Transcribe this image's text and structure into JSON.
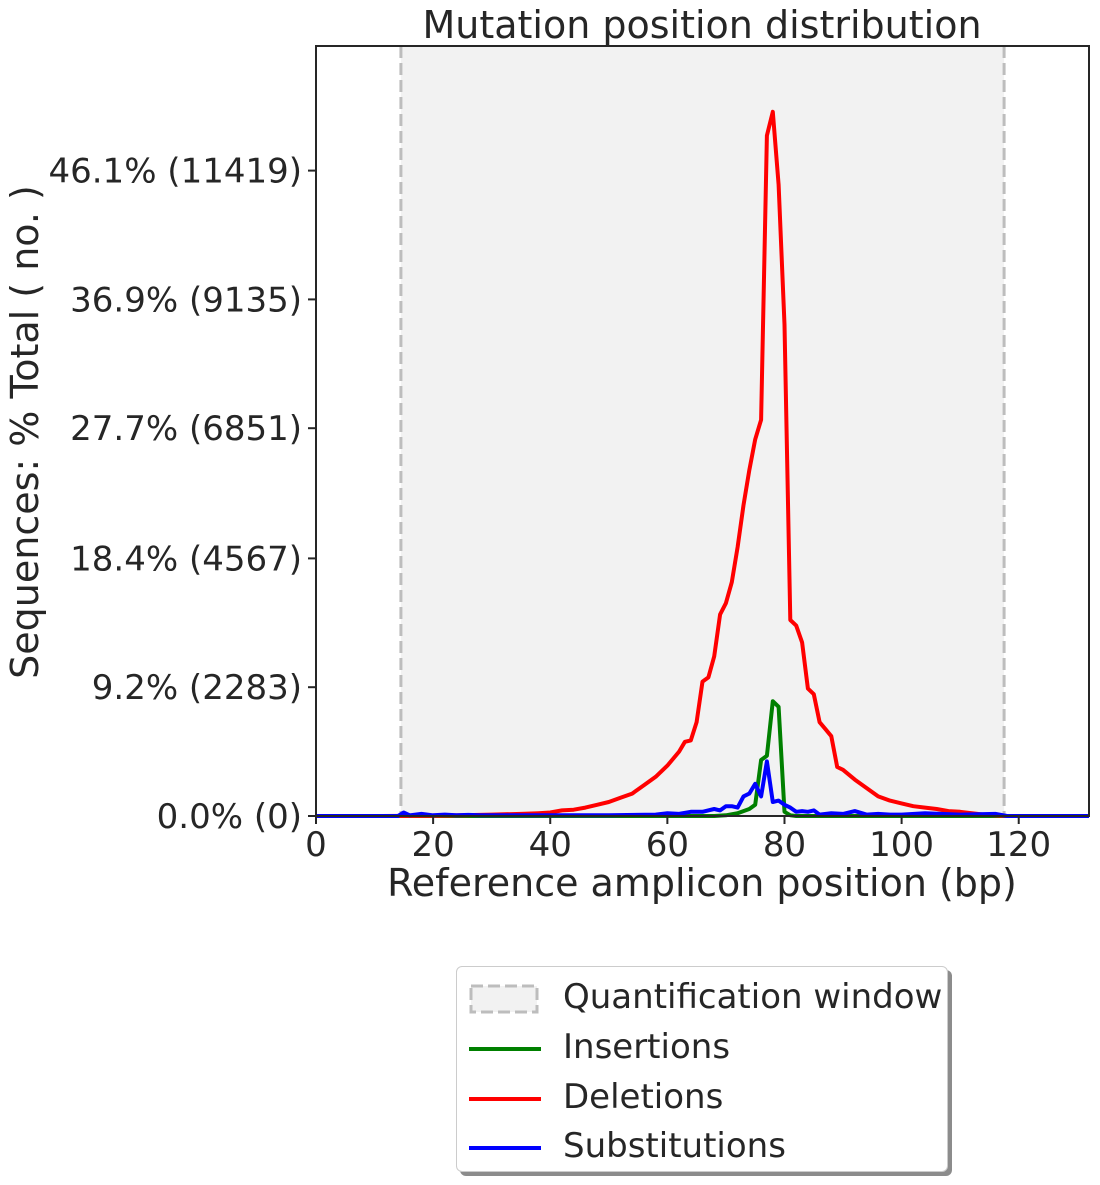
{
  "chart_data": {
    "type": "line",
    "title": "Mutation position distribution",
    "xlabel": "Reference amplicon position (bp)",
    "ylabel": "Sequences: % Total ( no. )",
    "xlim": [
      0,
      132
    ],
    "ylim": [
      0,
      55.0
    ],
    "xticks": [
      0,
      20,
      40,
      60,
      80,
      100,
      120
    ],
    "xtick_labels": [
      "0",
      "20",
      "40",
      "60",
      "80",
      "100",
      "120"
    ],
    "yticks": [
      0,
      9.2,
      18.4,
      27.7,
      36.9,
      46.1
    ],
    "ytick_labels": [
      "0.0% (0)",
      "9.2% (2283)",
      "18.4% (4567)",
      "27.7% (6851)",
      "36.9% (9135)",
      "46.1% (11419)"
    ],
    "quantification_window": [
      14.5,
      117.5
    ],
    "grid": false,
    "legend_position": "below plot",
    "series": [
      {
        "name": "Insertions",
        "color": "#008000",
        "x": [
          0,
          68,
          70,
          72,
          74,
          75,
          76,
          77,
          78,
          79,
          80,
          81,
          82,
          132
        ],
        "y": [
          0,
          0,
          0.05,
          0.2,
          0.5,
          0.8,
          4.0,
          4.3,
          8.2,
          7.8,
          0.3,
          0.05,
          0,
          0
        ]
      },
      {
        "name": "Deletions",
        "color": "#ff0000",
        "x": [
          0,
          10,
          20,
          25,
          30,
          35,
          38,
          40,
          42,
          44,
          46,
          48,
          50,
          52,
          54,
          56,
          58,
          60,
          62,
          63,
          64,
          65,
          66,
          67,
          68,
          69,
          70,
          71,
          72,
          73,
          74,
          75,
          76,
          77,
          78,
          79,
          80,
          81,
          82,
          83,
          84,
          85,
          86,
          87,
          88,
          89,
          90,
          92,
          94,
          96,
          98,
          100,
          102,
          104,
          106,
          108,
          110,
          112,
          114,
          116,
          118,
          132
        ],
        "y": [
          0,
          0,
          0.02,
          0.05,
          0.1,
          0.15,
          0.2,
          0.25,
          0.4,
          0.45,
          0.6,
          0.8,
          1.0,
          1.3,
          1.6,
          2.2,
          2.8,
          3.6,
          4.6,
          5.3,
          5.4,
          6.7,
          9.6,
          9.9,
          11.4,
          14.4,
          15.2,
          16.7,
          19.2,
          22.2,
          24.7,
          26.9,
          28.3,
          48.6,
          50.3,
          45.1,
          35.1,
          14.0,
          13.6,
          12.4,
          9.1,
          8.7,
          6.7,
          6.2,
          5.7,
          3.5,
          3.3,
          2.6,
          2.0,
          1.4,
          1.1,
          0.9,
          0.7,
          0.6,
          0.5,
          0.35,
          0.3,
          0.2,
          0.1,
          0.05,
          0,
          0
        ]
      },
      {
        "name": "Substitutions",
        "color": "#0000ff",
        "x": [
          0,
          14,
          15,
          16,
          18,
          20,
          22,
          24,
          26,
          28,
          30,
          40,
          50,
          58,
          60,
          62,
          64,
          66,
          68,
          69,
          70,
          71,
          72,
          73,
          74,
          75,
          76,
          77,
          78,
          79,
          80,
          81,
          82,
          83,
          84,
          85,
          86,
          88,
          90,
          92,
          94,
          96,
          98,
          100,
          104,
          110,
          116,
          118,
          132
        ],
        "y": [
          0,
          0,
          0.25,
          0.05,
          0.15,
          0.05,
          0.1,
          0.05,
          0.08,
          0.05,
          0.05,
          0.05,
          0.05,
          0.1,
          0.2,
          0.15,
          0.3,
          0.3,
          0.5,
          0.4,
          0.7,
          0.7,
          0.6,
          1.4,
          1.6,
          2.3,
          1.4,
          3.9,
          1.0,
          1.1,
          0.8,
          0.6,
          0.3,
          0.35,
          0.3,
          0.4,
          0.1,
          0.2,
          0.15,
          0.35,
          0.1,
          0.15,
          0.1,
          0.1,
          0.2,
          0.1,
          0.15,
          0,
          0
        ]
      }
    ],
    "legend": [
      {
        "label": "Quantification window",
        "kind": "patch"
      },
      {
        "label": "Insertions",
        "kind": "line",
        "color": "#008000"
      },
      {
        "label": "Deletions",
        "kind": "line",
        "color": "#ff0000"
      },
      {
        "label": "Substitutions",
        "kind": "line",
        "color": "#0000ff"
      }
    ]
  }
}
